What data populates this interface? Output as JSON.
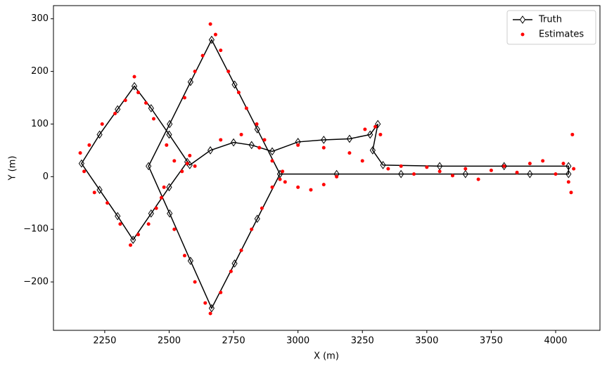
{
  "chart_data": {
    "type": "line",
    "xlabel": "X (m)",
    "ylabel": "Y (m)",
    "xlim": [
      2051,
      4172
    ],
    "ylim": [
      -292,
      325
    ],
    "xticks": [
      2250,
      2500,
      2750,
      3000,
      3250,
      3500,
      3750,
      4000
    ],
    "yticks": [
      {
        "value": -200,
        "label": "−200"
      },
      {
        "value": -100,
        "label": "−100"
      },
      0,
      100,
      200,
      300
    ],
    "legend": "upper right",
    "series": [
      {
        "name": "Truth",
        "color": "#000000",
        "marker": "diamond",
        "line": true,
        "x": [
          2930,
          2842,
          2754,
          2665,
          2583,
          2502,
          2420,
          2502,
          2583,
          2665,
          2754,
          2842,
          2930,
          3150,
          3400,
          3650,
          3900,
          4050,
          4050,
          3800,
          3550,
          3330,
          3290,
          3310,
          3280,
          3200,
          3100,
          3000,
          2900,
          2820,
          2750,
          2660,
          2580,
          2500,
          2430,
          2365,
          2300,
          2230,
          2160,
          2230,
          2300,
          2360,
          2430,
          2500,
          2570
        ],
        "values": [
          5,
          90,
          175,
          260,
          180,
          100,
          20,
          -70,
          -160,
          -250,
          -165,
          -80,
          5,
          5,
          5,
          5,
          5,
          5,
          20,
          20,
          20,
          22,
          50,
          100,
          80,
          72,
          70,
          66,
          48,
          60,
          65,
          50,
          22,
          80,
          130,
          172,
          128,
          80,
          25,
          -25,
          -75,
          -120,
          -70,
          -20,
          28
        ]
      },
      {
        "name": "Estimates",
        "color": "#ff0000",
        "marker": "dot",
        "line": false,
        "x": [
          2155,
          2170,
          2190,
          2210,
          2240,
          2260,
          2290,
          2310,
          2330,
          2350,
          2365,
          2380,
          2380,
          2410,
          2420,
          2440,
          2450,
          2470,
          2480,
          2490,
          2520,
          2550,
          2570,
          2580,
          2600,
          2560,
          2600,
          2630,
          2660,
          2680,
          2700,
          2730,
          2770,
          2800,
          2840,
          2870,
          2900,
          2930,
          2940,
          2520,
          2560,
          2600,
          2640,
          2660,
          2700,
          2740,
          2780,
          2820,
          2860,
          2900,
          2700,
          2780,
          2850,
          2950,
          3000,
          3050,
          3100,
          3150,
          3200,
          3250,
          3260,
          3300,
          3320,
          3350,
          3400,
          3450,
          3500,
          3550,
          3600,
          3650,
          3700,
          3750,
          3800,
          3850,
          3900,
          3950,
          4000,
          4030,
          4050,
          4060,
          4070,
          4065,
          3000,
          3100
        ],
        "values": [
          45,
          10,
          60,
          -30,
          100,
          -50,
          120,
          -90,
          145,
          -130,
          190,
          160,
          -110,
          140,
          -90,
          110,
          -60,
          -40,
          -20,
          60,
          30,
          10,
          25,
          40,
          20,
          150,
          200,
          230,
          290,
          270,
          240,
          200,
          160,
          130,
          100,
          70,
          30,
          -5,
          10,
          -100,
          -150,
          -200,
          -240,
          -260,
          -220,
          -180,
          -140,
          -100,
          -60,
          -20,
          70,
          80,
          55,
          -10,
          -20,
          -25,
          -15,
          0,
          45,
          30,
          90,
          95,
          80,
          15,
          20,
          5,
          18,
          10,
          2,
          15,
          -5,
          12,
          20,
          8,
          25,
          30,
          5,
          25,
          -10,
          -30,
          15,
          80,
          60,
          55
        ]
      }
    ]
  }
}
